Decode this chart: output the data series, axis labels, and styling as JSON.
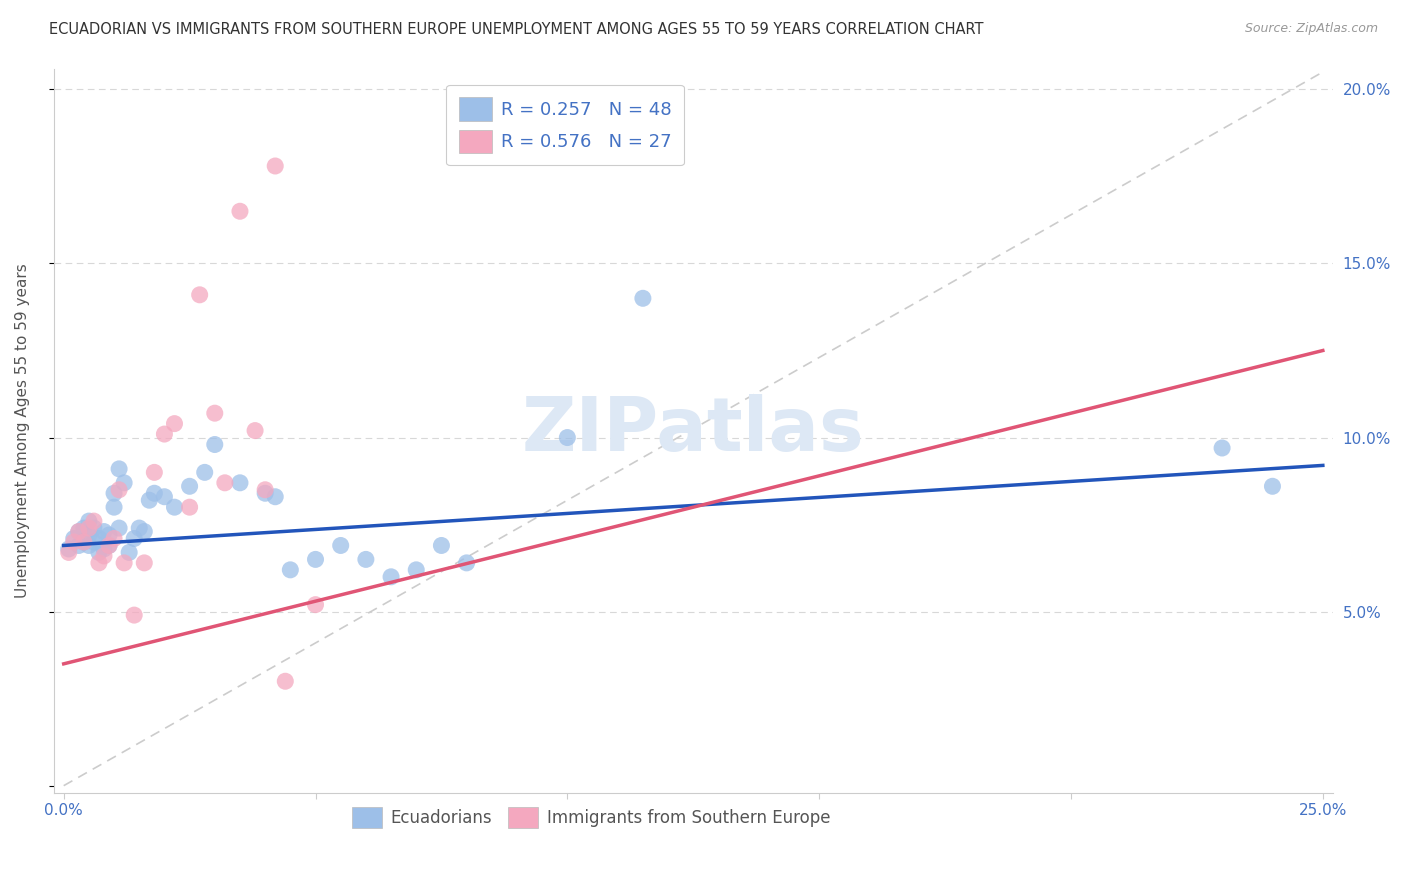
{
  "title": "ECUADORIAN VS IMMIGRANTS FROM SOUTHERN EUROPE UNEMPLOYMENT AMONG AGES 55 TO 59 YEARS CORRELATION CHART",
  "source": "Source: ZipAtlas.com",
  "ylabel": "Unemployment Among Ages 55 to 59 years",
  "x_min": 0.0,
  "x_max": 0.25,
  "y_min": 0.0,
  "y_max": 0.2,
  "x_tick_positions": [
    0.0,
    0.05,
    0.1,
    0.15,
    0.2,
    0.25
  ],
  "x_tick_labels": [
    "0.0%",
    "",
    "",
    "",
    "",
    "25.0%"
  ],
  "y_tick_positions": [
    0.0,
    0.05,
    0.1,
    0.15,
    0.2
  ],
  "y_tick_labels_right": [
    "",
    "5.0%",
    "10.0%",
    "15.0%",
    "20.0%"
  ],
  "watermark_text": "ZIPatlas",
  "ecu_color": "#9dbfe8",
  "imm_color": "#f4a8bf",
  "ecu_line_color": "#2255bb",
  "imm_line_color": "#e05575",
  "ref_line_color": "#cccccc",
  "legend_label_color": "#4472c4",
  "ecu_N": 48,
  "ecu_R": 0.257,
  "imm_N": 27,
  "imm_R": 0.576,
  "ecu_line_x0": 0.0,
  "ecu_line_y0": 0.069,
  "ecu_line_x1": 0.25,
  "ecu_line_y1": 0.092,
  "imm_line_x0": 0.0,
  "imm_line_y0": 0.035,
  "imm_line_x1": 0.25,
  "imm_line_y1": 0.125,
  "ecu_points_x": [
    0.001,
    0.002,
    0.003,
    0.003,
    0.004,
    0.004,
    0.005,
    0.005,
    0.005,
    0.006,
    0.006,
    0.007,
    0.007,
    0.008,
    0.008,
    0.009,
    0.009,
    0.01,
    0.01,
    0.011,
    0.011,
    0.012,
    0.013,
    0.014,
    0.015,
    0.016,
    0.017,
    0.018,
    0.02,
    0.022,
    0.025,
    0.028,
    0.03,
    0.035,
    0.04,
    0.042,
    0.045,
    0.05,
    0.055,
    0.06,
    0.065,
    0.07,
    0.075,
    0.08,
    0.1,
    0.115,
    0.23,
    0.24
  ],
  "ecu_points_y": [
    0.068,
    0.071,
    0.069,
    0.073,
    0.07,
    0.074,
    0.069,
    0.072,
    0.076,
    0.07,
    0.074,
    0.067,
    0.071,
    0.068,
    0.073,
    0.069,
    0.072,
    0.08,
    0.084,
    0.074,
    0.091,
    0.087,
    0.067,
    0.071,
    0.074,
    0.073,
    0.082,
    0.084,
    0.083,
    0.08,
    0.086,
    0.09,
    0.098,
    0.087,
    0.084,
    0.083,
    0.062,
    0.065,
    0.069,
    0.065,
    0.06,
    0.062,
    0.069,
    0.064,
    0.1,
    0.14,
    0.097,
    0.086
  ],
  "imm_points_x": [
    0.001,
    0.002,
    0.003,
    0.004,
    0.005,
    0.006,
    0.007,
    0.008,
    0.009,
    0.01,
    0.011,
    0.012,
    0.014,
    0.016,
    0.018,
    0.02,
    0.022,
    0.025,
    0.027,
    0.03,
    0.032,
    0.035,
    0.038,
    0.04,
    0.042,
    0.044,
    0.05
  ],
  "imm_points_y": [
    0.067,
    0.07,
    0.073,
    0.07,
    0.074,
    0.076,
    0.064,
    0.066,
    0.069,
    0.071,
    0.085,
    0.064,
    0.049,
    0.064,
    0.09,
    0.101,
    0.104,
    0.08,
    0.141,
    0.107,
    0.087,
    0.165,
    0.102,
    0.085,
    0.178,
    0.03,
    0.052
  ]
}
